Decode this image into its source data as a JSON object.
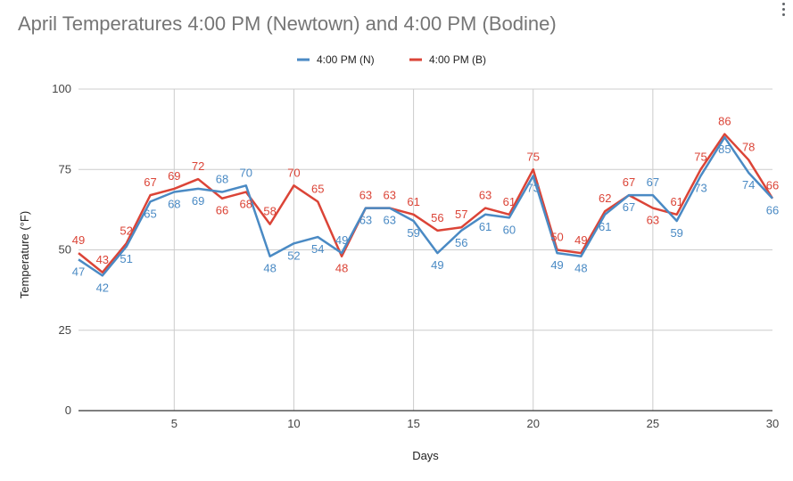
{
  "chart_data": {
    "type": "line",
    "title": "April Temperatures 4:00 PM (Newtown) and 4:00 PM (Bodine)",
    "xlabel": "Days",
    "ylabel": "Temperature (°F)",
    "xlim": [
      1,
      30
    ],
    "ylim": [
      0,
      100
    ],
    "x_ticks": [
      5,
      10,
      15,
      20,
      25,
      30
    ],
    "y_ticks": [
      0,
      25,
      50,
      75,
      100
    ],
    "grid": true,
    "legend_position": "top",
    "x": [
      1,
      2,
      3,
      4,
      5,
      6,
      7,
      8,
      9,
      10,
      11,
      12,
      13,
      14,
      15,
      16,
      17,
      18,
      19,
      20,
      21,
      22,
      23,
      24,
      25,
      26,
      27,
      28,
      29,
      30
    ],
    "series": [
      {
        "name": "4:00 PM (N)",
        "color": "#4a8ac4",
        "values": [
          47,
          42,
          51,
          65,
          68,
          69,
          68,
          70,
          48,
          52,
          54,
          49,
          63,
          63,
          59,
          49,
          56,
          61,
          60,
          73,
          49,
          48,
          61,
          67,
          67,
          59,
          73,
          85,
          74,
          66
        ]
      },
      {
        "name": "4:00 PM (B)",
        "color": "#db4437",
        "values": [
          49,
          43,
          52,
          67,
          69,
          72,
          66,
          68,
          58,
          70,
          65,
          48,
          63,
          63,
          61,
          56,
          57,
          63,
          61,
          75,
          50,
          49,
          62,
          67,
          63,
          61,
          75,
          86,
          78,
          66
        ]
      }
    ]
  }
}
